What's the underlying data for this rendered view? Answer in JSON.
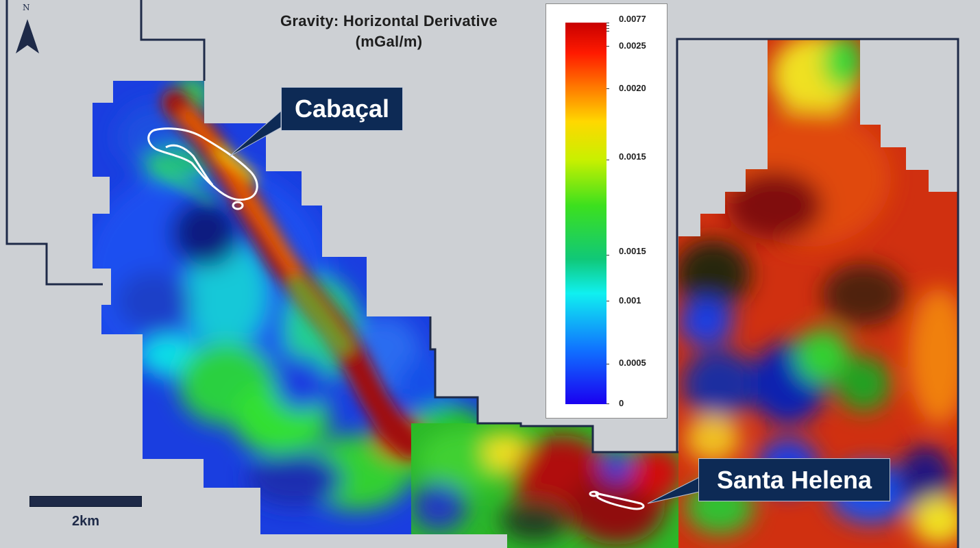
{
  "title": {
    "line1": "Gravity: Horizontal Derivative",
    "line2": "(mGal/m)"
  },
  "legend": {
    "ticks": [
      "0.0077",
      "0.0025",
      "0.0020",
      "0.0015",
      "0.0015",
      "0.001",
      "0.0005",
      "0"
    ]
  },
  "labels": {
    "cabacal": "Cabaçal",
    "santa_helena": "Santa Helena"
  },
  "north_arrow": {
    "label": "N",
    "icon": "north-arrow-icon"
  },
  "scale_bar": {
    "label": "2km"
  },
  "colors": {
    "background": "#cdd0d4",
    "boundary": "#1e2a48",
    "callout": "#0d2a55",
    "high": "#c80000",
    "low": "#1a00f0"
  }
}
